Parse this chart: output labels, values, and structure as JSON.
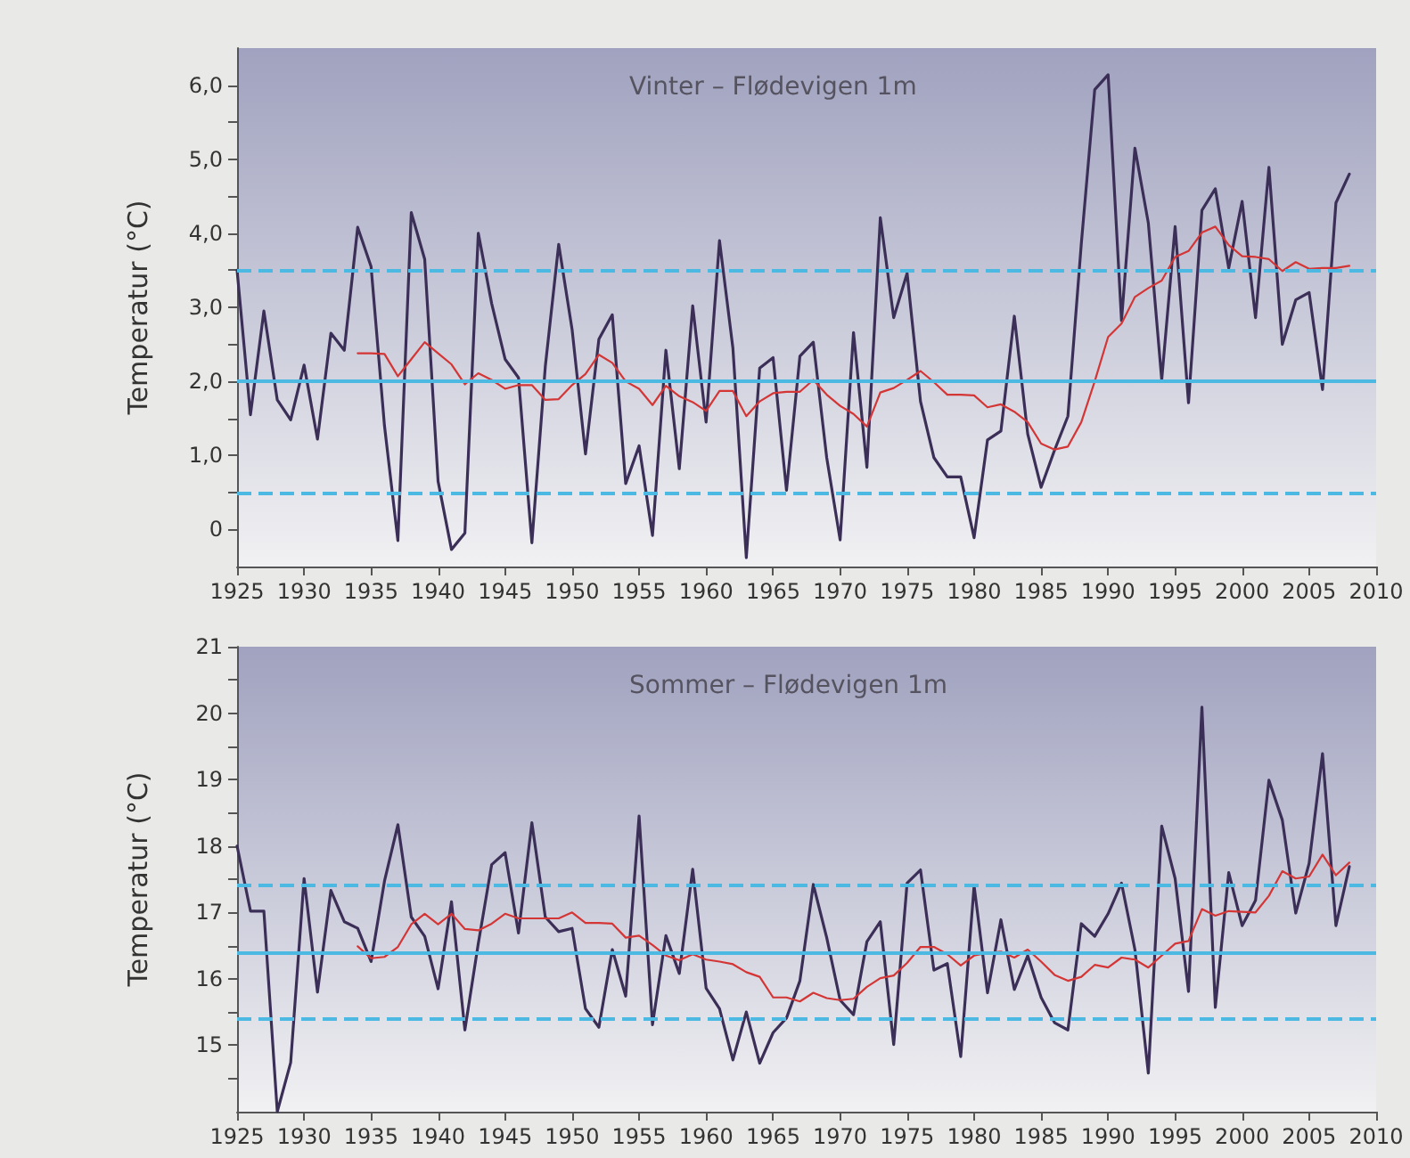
{
  "chart_data": [
    {
      "type": "line",
      "title": "Vinter – Flødevigen 1m",
      "ylabel": "Temperatur (°C)",
      "x": [
        1925,
        1926,
        1927,
        1928,
        1929,
        1930,
        1931,
        1932,
        1933,
        1934,
        1935,
        1936,
        1937,
        1938,
        1939,
        1940,
        1941,
        1942,
        1943,
        1944,
        1945,
        1946,
        1947,
        1948,
        1949,
        1950,
        1951,
        1952,
        1953,
        1954,
        1955,
        1956,
        1957,
        1958,
        1959,
        1960,
        1961,
        1962,
        1963,
        1964,
        1965,
        1966,
        1967,
        1968,
        1969,
        1970,
        1971,
        1972,
        1973,
        1974,
        1975,
        1976,
        1977,
        1978,
        1979,
        1980,
        1981,
        1982,
        1983,
        1984,
        1985,
        1986,
        1987,
        1988,
        1989,
        1990,
        1991,
        1992,
        1993,
        1994,
        1995,
        1996,
        1997,
        1998,
        1999,
        2000,
        2001,
        2002,
        2003,
        2004,
        2005,
        2006,
        2007,
        2008
      ],
      "series": [
        {
          "color": "#3b2f58",
          "values": [
            3.5,
            1.55,
            2.95,
            1.75,
            1.48,
            2.22,
            1.22,
            2.65,
            2.42,
            4.08,
            3.55,
            1.4,
            -0.15,
            4.28,
            3.65,
            0.65,
            -0.27,
            -0.05,
            4.0,
            3.05,
            2.3,
            2.05,
            -0.18,
            2.2,
            3.85,
            2.7,
            1.02,
            2.57,
            2.9,
            0.62,
            1.13,
            -0.08,
            2.42,
            0.82,
            3.02,
            1.45,
            3.9,
            2.45,
            -0.38,
            2.18,
            2.32,
            0.53,
            2.34,
            2.53,
            0.97,
            -0.14,
            2.66,
            0.84,
            4.21,
            2.86,
            3.46,
            1.73,
            0.97,
            0.71,
            0.71,
            -0.11,
            1.21,
            1.33,
            2.88,
            1.29,
            0.57,
            1.07,
            1.53,
            3.86,
            5.94,
            6.14,
            2.82,
            5.15,
            4.14,
            2.02,
            4.09,
            1.71,
            4.31,
            4.6,
            3.53,
            4.43,
            2.86,
            4.89,
            2.5,
            3.1,
            3.2,
            1.89,
            4.41,
            4.8
          ]
        },
        {
          "color": "#d43535",
          "values": [
            null,
            null,
            null,
            null,
            null,
            null,
            null,
            null,
            null,
            2.38,
            2.38,
            2.37,
            2.07,
            2.3,
            2.53,
            2.38,
            2.23,
            1.96,
            2.11,
            2.02,
            1.9,
            1.95,
            1.95,
            1.75,
            1.76,
            1.95,
            2.1,
            2.36,
            2.25,
            2.0,
            1.9,
            1.68,
            1.94,
            1.8,
            1.72,
            1.6,
            1.87,
            1.87,
            1.53,
            1.73,
            1.84,
            1.86,
            1.86,
            2.02,
            1.82,
            1.67,
            1.56,
            1.39,
            1.85,
            1.91,
            2.02,
            2.14,
            1.99,
            1.82,
            1.82,
            1.81,
            1.65,
            1.69,
            1.59,
            1.45,
            1.16,
            1.08,
            1.12,
            1.45,
            2.0,
            2.6,
            2.78,
            3.14,
            3.26,
            3.36,
            3.68,
            3.76,
            4.01,
            4.09,
            3.84,
            3.69,
            3.68,
            3.65,
            3.49,
            3.61,
            3.52,
            3.53,
            3.53,
            3.56
          ]
        }
      ],
      "xlim": [
        1925,
        2010
      ],
      "xticks": [
        1925,
        1930,
        1935,
        1940,
        1945,
        1950,
        1955,
        1960,
        1965,
        1970,
        1975,
        1980,
        1985,
        1990,
        1995,
        2000,
        2005,
        2010
      ],
      "ylim": [
        -0.5,
        6.5
      ],
      "yticks": [
        0,
        {
          "value": 0.5,
          "label": null
        },
        {
          "value": 1,
          "label": "1,0"
        },
        {
          "value": 1.5,
          "label": null
        },
        {
          "value": 2,
          "label": "2,0"
        },
        {
          "value": 2.5,
          "label": null
        },
        {
          "value": 3,
          "label": "3,0"
        },
        {
          "value": 3.5,
          "label": null
        },
        {
          "value": 4,
          "label": "4,0"
        },
        {
          "value": 4.5,
          "label": null
        },
        {
          "value": 5,
          "label": "5,0"
        },
        {
          "value": 5.5,
          "label": null
        },
        {
          "value": 6,
          "label": "6,0"
        }
      ],
      "ref_lines": [
        {
          "axis": "y",
          "value": 3.5,
          "color": "#4bb9e2",
          "line_style": "dashed"
        },
        {
          "axis": "y",
          "value": 2.0,
          "color": "#4bb9e2",
          "line_style": "solid"
        },
        {
          "axis": "y",
          "value": 0.5,
          "color": "#4bb9e2",
          "line_style": "dashed"
        }
      ],
      "grid": false,
      "marker": "none",
      "line_style": "solid"
    },
    {
      "type": "line",
      "title": "Sommer – Flødevigen 1m",
      "ylabel": "Temperatur (°C)",
      "x": [
        1925,
        1926,
        1927,
        1928,
        1929,
        1930,
        1931,
        1932,
        1933,
        1934,
        1935,
        1936,
        1937,
        1938,
        1939,
        1940,
        1941,
        1942,
        1943,
        1944,
        1945,
        1946,
        1947,
        1948,
        1949,
        1950,
        1951,
        1952,
        1953,
        1954,
        1955,
        1956,
        1957,
        1958,
        1959,
        1960,
        1961,
        1962,
        1963,
        1964,
        1965,
        1966,
        1967,
        1968,
        1969,
        1970,
        1971,
        1972,
        1973,
        1974,
        1975,
        1976,
        1977,
        1978,
        1979,
        1980,
        1981,
        1982,
        1983,
        1984,
        1985,
        1986,
        1987,
        1988,
        1989,
        1990,
        1991,
        1992,
        1993,
        1994,
        1995,
        1996,
        1997,
        1998,
        1999,
        2000,
        2001,
        2002,
        2003,
        2004,
        2005,
        2006,
        2007,
        2008
      ],
      "series": [
        {
          "color": "#3b2f58",
          "values": [
            18.0,
            17.02,
            17.02,
            14.0,
            14.74,
            17.51,
            15.8,
            17.33,
            16.86,
            16.76,
            16.26,
            17.47,
            18.32,
            16.93,
            16.64,
            15.85,
            17.16,
            15.23,
            16.53,
            17.72,
            17.9,
            16.69,
            18.35,
            16.93,
            16.71,
            16.76,
            15.55,
            15.27,
            16.44,
            15.74,
            18.45,
            15.31,
            16.65,
            16.08,
            17.65,
            15.86,
            15.55,
            14.78,
            15.5,
            14.73,
            15.19,
            15.41,
            15.97,
            17.42,
            16.62,
            15.68,
            15.46,
            16.56,
            16.86,
            15.01,
            17.44,
            17.64,
            16.13,
            16.23,
            14.83,
            17.4,
            15.79,
            16.89,
            15.84,
            16.35,
            15.72,
            15.34,
            15.23,
            16.83,
            16.64,
            16.98,
            17.44,
            16.44,
            14.58,
            18.3,
            17.51,
            15.81,
            20.09,
            15.57,
            17.6,
            16.8,
            17.18,
            18.99,
            18.39,
            16.99,
            17.74,
            19.39,
            16.8,
            17.69
          ]
        },
        {
          "color": "#d43535",
          "values": [
            null,
            null,
            null,
            null,
            null,
            null,
            null,
            null,
            null,
            16.49,
            16.31,
            16.33,
            16.48,
            16.82,
            16.98,
            16.82,
            16.98,
            16.75,
            16.73,
            16.83,
            16.98,
            16.91,
            16.91,
            16.91,
            16.91,
            17.0,
            16.84,
            16.84,
            16.83,
            16.62,
            16.65,
            16.51,
            16.35,
            16.28,
            16.37,
            16.29,
            16.26,
            16.22,
            16.1,
            16.03,
            15.72,
            15.72,
            15.66,
            15.79,
            15.71,
            15.68,
            15.7,
            15.88,
            16.01,
            16.05,
            16.24,
            16.48,
            16.48,
            16.37,
            16.2,
            16.35,
            16.39,
            16.41,
            16.32,
            16.44,
            16.26,
            16.06,
            15.97,
            16.03,
            16.21,
            16.17,
            16.32,
            16.29,
            16.17,
            16.35,
            16.53,
            16.57,
            17.05,
            16.95,
            17.02,
            17.01,
            17.0,
            17.25,
            17.62,
            17.51,
            17.54,
            17.87,
            17.56,
            17.75
          ]
        }
      ],
      "xlim": [
        1925,
        2010
      ],
      "xticks": [
        1925,
        1930,
        1935,
        1940,
        1945,
        1950,
        1955,
        1960,
        1965,
        1970,
        1975,
        1980,
        1985,
        1990,
        1995,
        2000,
        2005,
        2010
      ],
      "ylim": [
        14,
        21
      ],
      "yticks": [
        {
          "value": 14.5,
          "label": null
        },
        15,
        {
          "value": 15.5,
          "label": null
        },
        16,
        {
          "value": 16.5,
          "label": null
        },
        17,
        {
          "value": 17.5,
          "label": null
        },
        18,
        {
          "value": 18.5,
          "label": null
        },
        19,
        {
          "value": 19.5,
          "label": null
        },
        20,
        {
          "value": 20.5,
          "label": null
        },
        21
      ],
      "ref_lines": [
        {
          "axis": "y",
          "value": 17.4,
          "color": "#4bb9e2",
          "line_style": "dashed"
        },
        {
          "axis": "y",
          "value": 16.4,
          "color": "#4bb9e2",
          "line_style": "solid"
        },
        {
          "axis": "y",
          "value": 15.4,
          "color": "#4bb9e2",
          "line_style": "dashed"
        }
      ],
      "grid": false,
      "marker": "none",
      "line_style": "solid"
    }
  ]
}
